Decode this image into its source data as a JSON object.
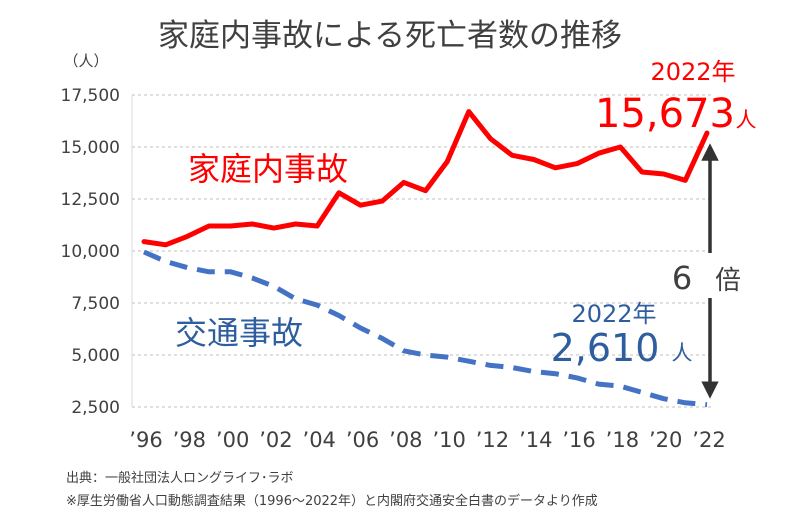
{
  "chart_data": {
    "type": "line",
    "title": "家庭内事故による死亡者数の推移",
    "unit_label": "（人）",
    "xlabel": "",
    "ylabel": "",
    "ylim": [
      2500,
      17500
    ],
    "y_ticks": [
      "17,500",
      "15,000",
      "12,500",
      "10,000",
      "7,500",
      "5,000",
      "2,500"
    ],
    "x": [
      1996,
      1997,
      1998,
      1999,
      2000,
      2001,
      2002,
      2003,
      2004,
      2005,
      2006,
      2007,
      2008,
      2009,
      2010,
      2011,
      2012,
      2013,
      2014,
      2015,
      2016,
      2017,
      2018,
      2019,
      2020,
      2021,
      2022
    ],
    "x_tick_labels": [
      "’96",
      "’98",
      "’00",
      "’02",
      "’04",
      "’06",
      "’08",
      "’10",
      "’12",
      "’14",
      "’16",
      "’18",
      "’20",
      "’22"
    ],
    "grid": "horizontal dashed",
    "series": [
      {
        "name": "家庭内事故",
        "color": "#ff0000",
        "style": "solid",
        "values": [
          10450,
          10300,
          10700,
          11200,
          11200,
          11300,
          11100,
          11300,
          11200,
          12800,
          12200,
          12400,
          13300,
          12900,
          14300,
          16700,
          15400,
          14600,
          14400,
          14000,
          14200,
          14700,
          15000,
          13800,
          13700,
          13400,
          15673
        ]
      },
      {
        "name": "交通事故",
        "color": "#4472c4",
        "style": "dashed",
        "values": [
          9950,
          9500,
          9200,
          9000,
          9000,
          8700,
          8300,
          7700,
          7400,
          6900,
          6300,
          5800,
          5200,
          5000,
          4900,
          4700,
          4500,
          4400,
          4200,
          4100,
          3900,
          3600,
          3500,
          3200,
          2900,
          2700,
          2610
        ]
      }
    ],
    "annotations": {
      "home_year": "2022年",
      "home_value": "15,673",
      "home_unit": "人",
      "traffic_year": "2022年",
      "traffic_value": "2,610",
      "traffic_unit": "人",
      "ratio_value": "6",
      "ratio_unit": "倍"
    },
    "source_line1": "出典：一般社団法人ロングライフ･ラボ",
    "source_line2": "※厚生労働省人口動態調査結果（1996～2022年）と内閣府交通安全白書のデータより作成"
  }
}
